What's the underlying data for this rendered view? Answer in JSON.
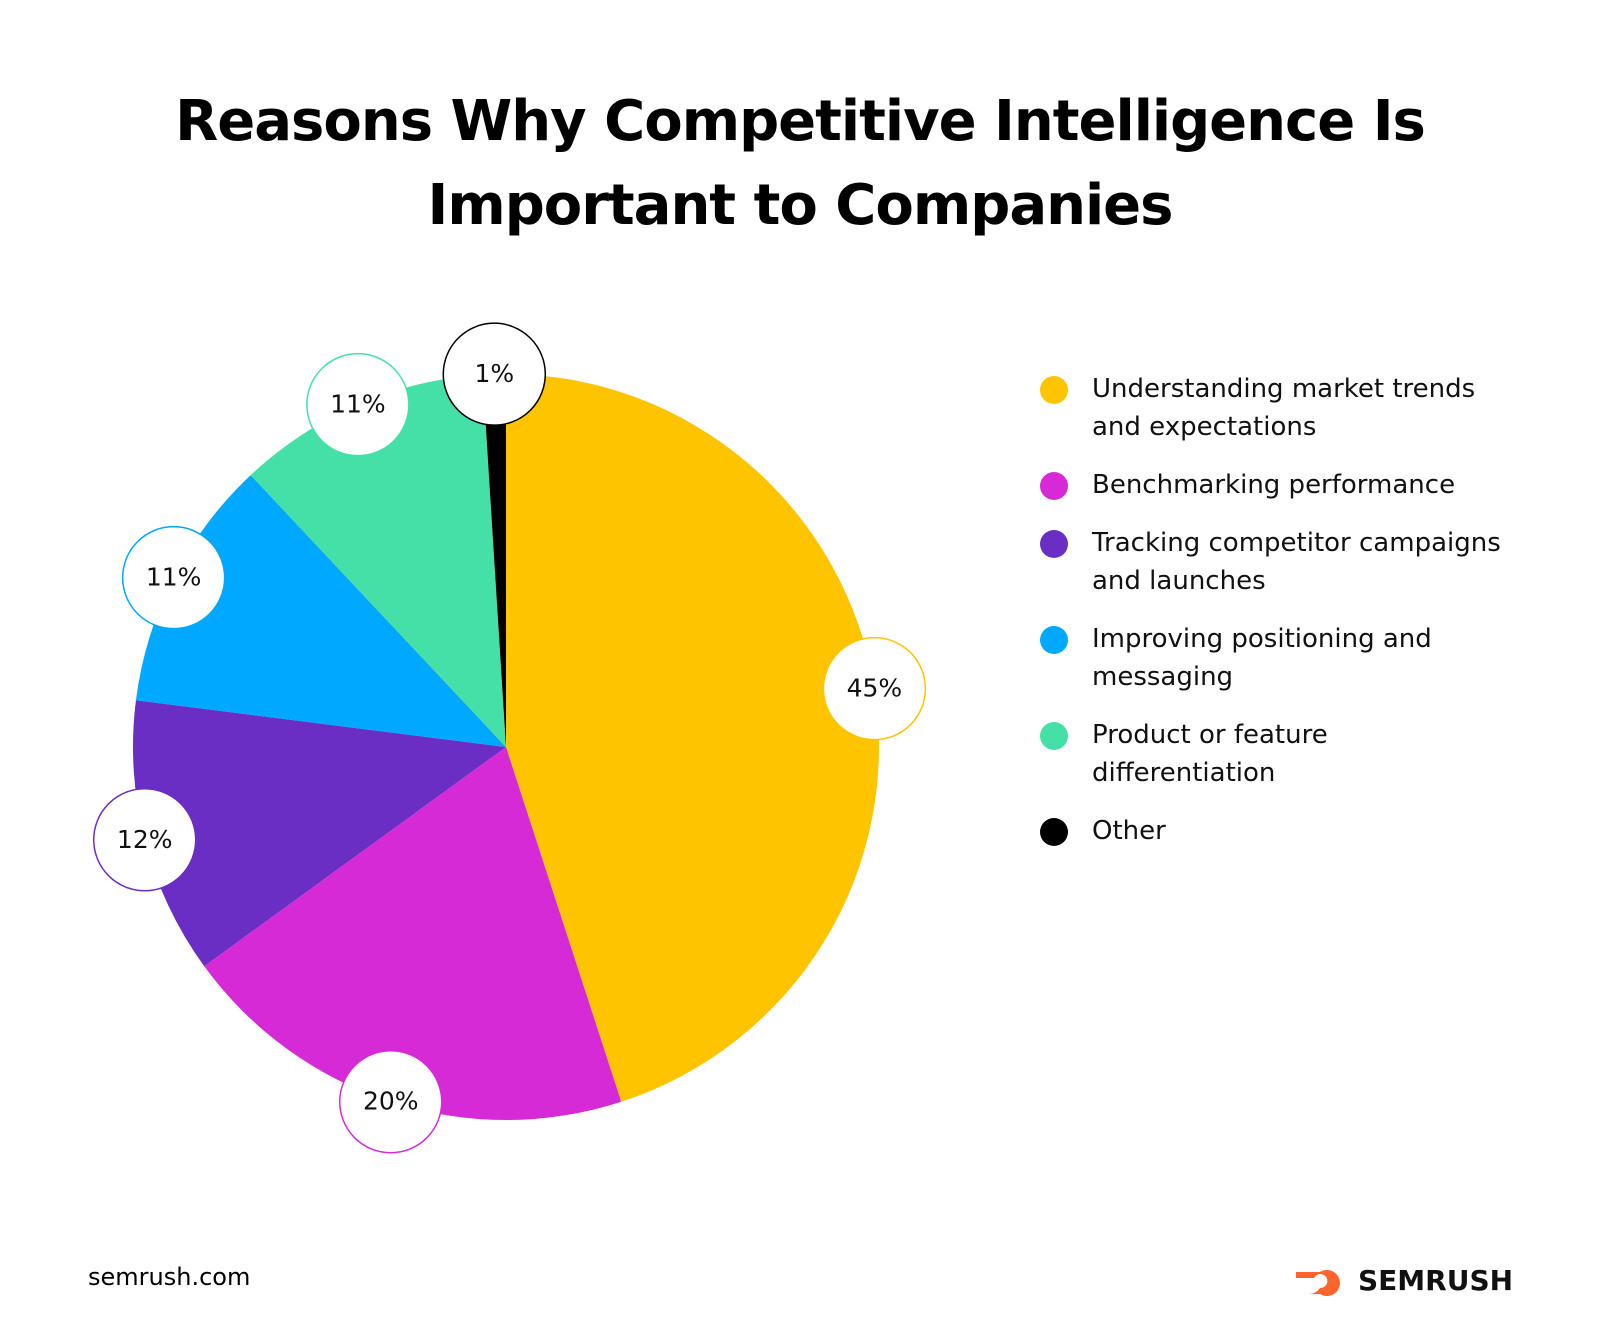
{
  "chart_data": {
    "type": "pie",
    "title": "Reasons Why Competitive Intelligence Is Important to Companies",
    "categories": [
      "Understanding market trends and expectations",
      "Benchmarking performance",
      "Tracking competitor campaigns and launches",
      "Improving positioning and messaging",
      "Product or feature differentiation",
      "Other"
    ],
    "values": [
      45,
      20,
      12,
      11,
      11,
      1
    ],
    "value_labels": [
      "45%",
      "20%",
      "12%",
      "11%",
      "11%",
      "1%"
    ],
    "colors": [
      "#ffc400",
      "#d62ad6",
      "#6a2ec4",
      "#00a8ff",
      "#45e0a8",
      "#000000"
    ]
  },
  "footer": {
    "source": "semrush.com",
    "brand": "SEMRUSH"
  }
}
